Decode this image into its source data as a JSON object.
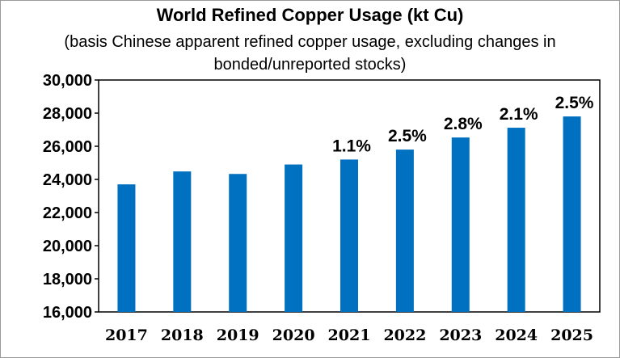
{
  "chart_data": {
    "type": "bar",
    "title": "World Refined Copper Usage (kt Cu)",
    "subtitle": "(basis Chinese apparent refined copper usage, excluding changes in bonded/unreported stocks)",
    "categories": [
      "2017",
      "2018",
      "2019",
      "2020",
      "2021",
      "2022",
      "2023",
      "2024",
      "2025"
    ],
    "values": [
      23700,
      24480,
      24330,
      24900,
      25200,
      25800,
      26530,
      27120,
      27800
    ],
    "data_labels": [
      "",
      "",
      "",
      "",
      "1.1%",
      "2.5%",
      "2.8%",
      "2.1%",
      "2.5%"
    ],
    "ylim": [
      16000,
      30000
    ],
    "yticks": [
      16000,
      18000,
      20000,
      22000,
      24000,
      26000,
      28000,
      30000
    ],
    "ytick_labels": [
      "16,000",
      "18,000",
      "20,000",
      "22,000",
      "24,000",
      "26,000",
      "28,000",
      "30,000"
    ],
    "xlabel": "",
    "ylabel": "",
    "grid": false,
    "bar_color": "#0070c0"
  }
}
